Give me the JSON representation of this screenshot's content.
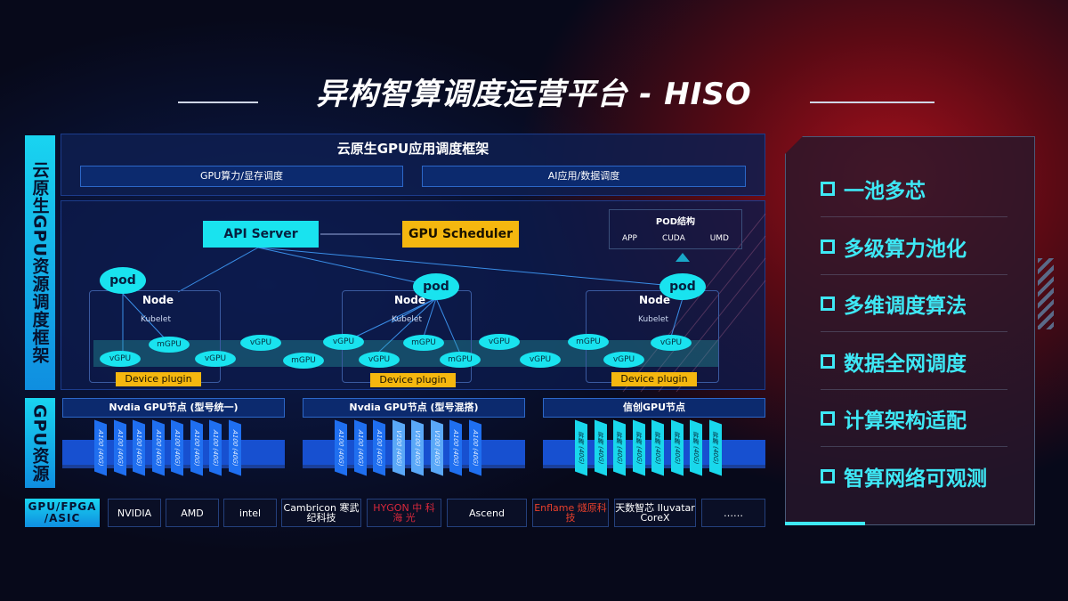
{
  "title": "异构智算调度运营平台 - HISO",
  "left_labels": {
    "framework": "云原生GPU资源调度框架",
    "resources": "GPU资源"
  },
  "framework": {
    "header": "云原生GPU应用调度框架",
    "sub": [
      "GPU算力/显存调度",
      "AI应用/数据调度"
    ],
    "api_server": "API Server",
    "gpu_scheduler": "GPU Scheduler",
    "pod_struct": {
      "title": "POD结构",
      "items": [
        "APP",
        "CUDA",
        "UMD"
      ]
    },
    "pod": "pod",
    "node": "Node",
    "kubelet": "Kubelet",
    "device_plugin": "Device plugin",
    "chips": [
      "vGPU",
      "mGPU",
      "vGPU",
      "vGPU",
      "mGPU",
      "vGPU",
      "vGPU",
      "mGPU",
      "mGPU",
      "vGPU",
      "vGPU",
      "mGPU",
      "vGPU",
      "vGPU"
    ]
  },
  "gpu_sections": [
    {
      "title": "Nvdia GPU节点 (型号统一)",
      "cards": [
        "A100 (40G)",
        "A100 (40G)",
        "A100 (40G)",
        "A100 (40G)",
        "A100 (40G)",
        "A100 (40G)",
        "A100 (40G)",
        "A100 (40G)"
      ],
      "color": "#1f6ff0"
    },
    {
      "title": "Nvdia GPU节点 (型号混搭)",
      "cards": [
        "A100 (40G)",
        "A100 (40G)",
        "A100 (40G)",
        "V100 (40G)",
        "V100 (40G)",
        "V100 (40G)",
        "A100 (40G)",
        "A100 (40G)"
      ],
      "color": "#1f6ff0"
    },
    {
      "title": "信创GPU节点",
      "cards": [
        "昇腾 (40G)",
        "昇腾 (40G)",
        "昇腾 (40G)",
        "昇腾 (40G)",
        "昇腾 (40G)",
        "昇腾 (40G)",
        "昇腾 (40G)",
        "昇腾 (40G)"
      ],
      "color": "#19d8ec"
    }
  ],
  "vendors": {
    "label": "GPU/FPGA /ASIC",
    "items": [
      "NVIDIA",
      "AMD",
      "intel",
      "Cambricon 寒武纪科技",
      "HYGON 中 科 海 光",
      "Ascend",
      "Enflame 燧原科技",
      "天数智芯 Iluvatar CoreX",
      "……"
    ]
  },
  "features": [
    "一池多芯",
    "多级算力池化",
    "多维调度算法",
    "数据全网调度",
    "计算架构适配",
    "智算网络可观测"
  ],
  "colors": {
    "accent_cyan": "#19e3ef",
    "accent_yellow": "#f5b70f",
    "brand_red": "#a3101c"
  }
}
